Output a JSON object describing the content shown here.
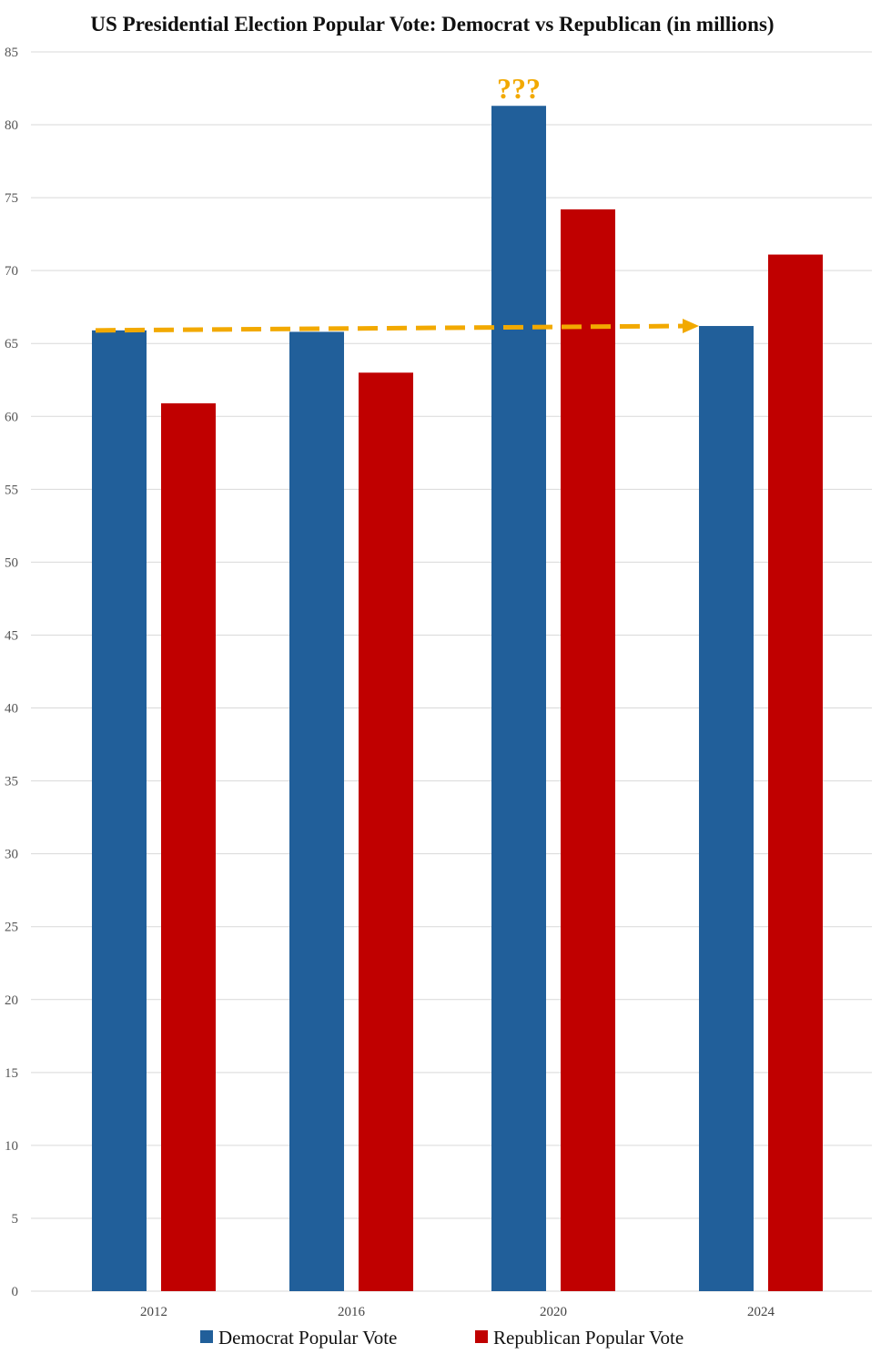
{
  "chart_data": {
    "type": "bar",
    "title": "US Presidential Election Popular Vote: Democrat vs Republican (in millions)",
    "categories": [
      "2012",
      "2016",
      "2020",
      "2024"
    ],
    "series": [
      {
        "name": "Democrat Popular Vote",
        "color": "#215f9a",
        "values": [
          65.9,
          65.8,
          81.3,
          66.2
        ]
      },
      {
        "name": "Republican Popular Vote",
        "color": "#c00000",
        "values": [
          60.9,
          63.0,
          74.2,
          71.1
        ]
      }
    ],
    "ylim": [
      0,
      85
    ],
    "yticks": [
      0,
      5,
      10,
      15,
      20,
      25,
      30,
      35,
      40,
      45,
      50,
      55,
      60,
      65,
      70,
      75,
      80,
      85
    ],
    "grid": true,
    "legend_position": "bottom",
    "annotations": [
      {
        "text": "???",
        "color": "#f2a900",
        "category": "2020",
        "series": "Democrat Popular Vote"
      }
    ],
    "arrow": {
      "color": "#f2a900",
      "from": {
        "category": "2012",
        "value": 65.9
      },
      "to": {
        "category": "2024",
        "value": 66.2
      }
    }
  }
}
